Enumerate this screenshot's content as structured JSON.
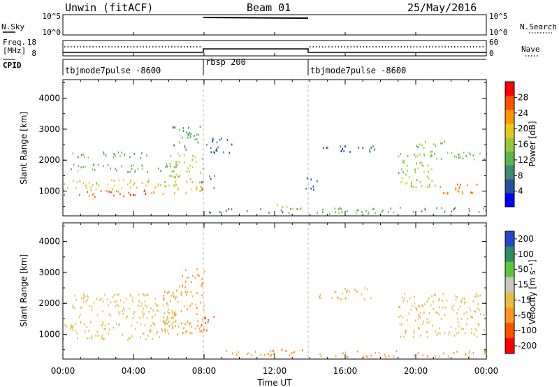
{
  "header": {
    "station": "Unwin (fitACF)",
    "beam": "Beam 01",
    "date": "25/May/2016"
  },
  "strips": {
    "nsky_label": "N.Sky",
    "nsky_ticks": [
      "10^5",
      "10^0"
    ],
    "nsearch_label": "N.Search",
    "freq_label_1": "Freq.",
    "freq_label_2": "[MHz]",
    "freq_ticks": [
      "18",
      "8"
    ],
    "nave_label": "Nave",
    "nave_ticks": [
      "60",
      "0"
    ],
    "cpid_label": "CPID",
    "cpid_segments": [
      {
        "label": "tbjmode7pulse -8600",
        "start": 0,
        "end": 8
      },
      {
        "label": "rbsp 200",
        "start": 8,
        "end": 14
      },
      {
        "label": "tbjmode7pulse -8600",
        "start": 14,
        "end": 24
      }
    ]
  },
  "xaxis": {
    "label": "Time UT",
    "ticks": [
      "00:00",
      "04:00",
      "08:00",
      "12:00",
      "16:00",
      "20:00",
      "00:00"
    ]
  },
  "power_panel": {
    "ylabel": "Slant Range [km]",
    "yticks": [
      "1000",
      "2000",
      "3000",
      "4000"
    ],
    "colorbar_label": "Power [dB]",
    "colorbar_ticks": [
      "4",
      "8",
      "12",
      "16",
      "20",
      "24",
      "28"
    ],
    "colors": [
      "#0000ff",
      "#2850a0",
      "#3c8c6e",
      "#5ab450",
      "#96c83c",
      "#e6c81e",
      "#ff9600",
      "#ff5000",
      "#ff0000"
    ]
  },
  "velocity_panel": {
    "ylabel": "Slant Range [km]",
    "yticks": [
      "1000",
      "2000",
      "3000",
      "4000"
    ],
    "colorbar_label": "Velocity [m s⁻¹]",
    "colorbar_ticks": [
      "200",
      "100",
      "50",
      "15",
      "-15",
      "-50",
      "-100",
      "-200"
    ],
    "colors": [
      "#2846c8",
      "#2d8c64",
      "#5ac83c",
      "#c8c8c0",
      "#e6be46",
      "#ff961e",
      "#ff5000",
      "#ff0000"
    ]
  },
  "chart_data": {
    "type": "heatmap",
    "x_unit": "hours UT",
    "xlim": [
      0,
      24
    ],
    "ylim": [
      200,
      4600
    ],
    "scan_mode_changes_hours": [
      8,
      14
    ],
    "power_regions": [
      {
        "t0": 0.0,
        "t1": 5.8,
        "r0": 800,
        "r1": 1000,
        "power_db": 26
      },
      {
        "t0": 0.0,
        "t1": 5.8,
        "r0": 1000,
        "r1": 1350,
        "power_db": 18
      },
      {
        "t0": 0.5,
        "t1": 5.5,
        "r0": 2050,
        "r1": 2250,
        "power_db": 13
      },
      {
        "t0": 0.4,
        "t1": 6.5,
        "r0": 1600,
        "r1": 1850,
        "power_db": 12
      },
      {
        "t0": 5.8,
        "t1": 8.0,
        "r0": 900,
        "r1": 1400,
        "power_db": 20
      },
      {
        "t0": 6.0,
        "t1": 8.0,
        "r0": 1400,
        "r1": 2200,
        "power_db": 17
      },
      {
        "t0": 6.2,
        "t1": 7.8,
        "r0": 2300,
        "r1": 3100,
        "power_db": 10
      },
      {
        "t0": 8.0,
        "t1": 9.6,
        "r0": 2200,
        "r1": 2700,
        "power_db": 6
      },
      {
        "t0": 7.8,
        "t1": 8.6,
        "r0": 1000,
        "r1": 1500,
        "power_db": 8
      },
      {
        "t0": 12.0,
        "t1": 13.6,
        "r0": 400,
        "r1": 550,
        "power_db": 20
      },
      {
        "t0": 8.2,
        "t1": 13.6,
        "r0": 280,
        "r1": 420,
        "power_db": 8
      },
      {
        "t0": 13.6,
        "t1": 14.4,
        "r0": 1000,
        "r1": 1400,
        "power_db": 5
      },
      {
        "t0": 14.4,
        "t1": 18.2,
        "r0": 2250,
        "r1": 2450,
        "power_db": 6
      },
      {
        "t0": 14.0,
        "t1": 24.0,
        "r0": 250,
        "r1": 450,
        "power_db": 12
      },
      {
        "t0": 19.0,
        "t1": 21.0,
        "r0": 1100,
        "r1": 2200,
        "power_db": 16
      },
      {
        "t0": 21.0,
        "t1": 24.0,
        "r0": 900,
        "r1": 1200,
        "power_db": 24
      },
      {
        "t0": 20.5,
        "t1": 24.0,
        "r0": 2000,
        "r1": 2300,
        "power_db": 14
      },
      {
        "t0": 20.0,
        "t1": 22.0,
        "r0": 2300,
        "r1": 2600,
        "power_db": 12
      }
    ],
    "velocity_regions": [
      {
        "t0": 0.0,
        "t1": 6.0,
        "r0": 800,
        "r1": 1400,
        "velocity": 0
      },
      {
        "t0": 0.5,
        "t1": 6.5,
        "r0": 1500,
        "r1": 2300,
        "velocity": 0
      },
      {
        "t0": 5.5,
        "t1": 8.0,
        "r0": 900,
        "r1": 2400,
        "velocity": -20
      },
      {
        "t0": 6.5,
        "t1": 8.0,
        "r0": 2500,
        "r1": 3100,
        "velocity": -30
      },
      {
        "t0": 7.8,
        "t1": 8.6,
        "r0": 1000,
        "r1": 1550,
        "velocity": -60
      },
      {
        "t0": 8.2,
        "t1": 13.6,
        "r0": 280,
        "r1": 450,
        "velocity": -25
      },
      {
        "t0": 11.5,
        "t1": 13.6,
        "r0": 420,
        "r1": 560,
        "velocity": -70
      },
      {
        "t0": 14.0,
        "t1": 19.0,
        "r0": 250,
        "r1": 450,
        "velocity": -20
      },
      {
        "t0": 14.5,
        "t1": 17.5,
        "r0": 2100,
        "r1": 2500,
        "velocity": -10
      },
      {
        "t0": 19.0,
        "t1": 24.0,
        "r0": 900,
        "r1": 2300,
        "velocity": 0
      },
      {
        "t0": 19.5,
        "t1": 24.0,
        "r0": 250,
        "r1": 450,
        "velocity": -20
      }
    ]
  }
}
